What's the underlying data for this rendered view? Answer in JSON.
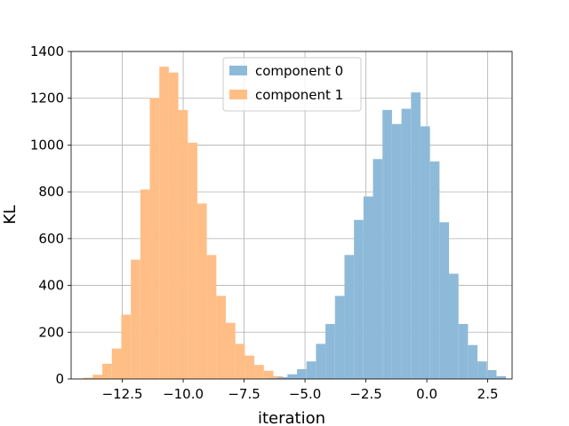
{
  "chart_data": {
    "type": "histogram",
    "xlabel": "iteration",
    "ylabel": "KL",
    "xlim": [
      -14.6,
      3.5
    ],
    "ylim": [
      0,
      1400
    ],
    "grid": true,
    "legend_position": "top-center",
    "xticks": [
      -12.5,
      -10.0,
      -7.5,
      -5.0,
      -2.5,
      0.0,
      2.5
    ],
    "xtick_labels": [
      "−12.5",
      "−10.0",
      "−7.5",
      "−5.0",
      "−2.5",
      "0.0",
      "2.5"
    ],
    "yticks": [
      0,
      200,
      400,
      600,
      800,
      1000,
      1200,
      1400
    ],
    "ytick_labels": [
      "0",
      "200",
      "400",
      "600",
      "800",
      "1000",
      "1200",
      "1400"
    ],
    "series": [
      {
        "name": "component 0",
        "color": "#8ebad9",
        "bin_start": -6.5,
        "bin_width": 0.39,
        "counts": [
          3,
          8,
          20,
          42,
          75,
          150,
          235,
          355,
          530,
          680,
          780,
          940,
          1150,
          1090,
          1155,
          1225,
          1080,
          930,
          670,
          450,
          235,
          145,
          75,
          38,
          12
        ]
      },
      {
        "name": "component 1",
        "color": "#ffbe86",
        "bin_start": -14.1,
        "bin_width": 0.39,
        "counts": [
          5,
          18,
          65,
          130,
          275,
          510,
          810,
          1200,
          1335,
          1310,
          1150,
          1010,
          750,
          530,
          355,
          240,
          150,
          100,
          60,
          35,
          12,
          5
        ]
      }
    ]
  }
}
